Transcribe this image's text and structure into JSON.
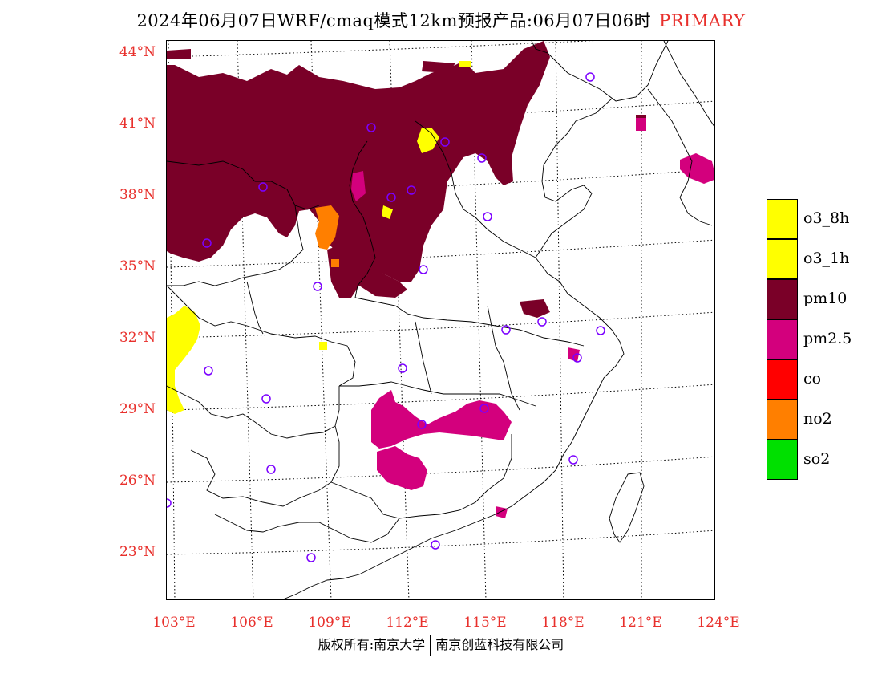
{
  "title": {
    "main": "2024年06月07日WRF/cmaq模式12km预报产品:06月07日06时",
    "tag": "PRIMARY"
  },
  "axes": {
    "lat_labels": [
      "44°N",
      "41°N",
      "38°N",
      "35°N",
      "32°N",
      "29°N",
      "26°N",
      "23°N"
    ],
    "lat_values": [
      44,
      41,
      38,
      35,
      32,
      29,
      26,
      23
    ],
    "lon_labels": [
      "103°E",
      "106°E",
      "109°E",
      "112°E",
      "115°E",
      "118°E",
      "121°E",
      "124°E"
    ],
    "lon_values": [
      103,
      106,
      109,
      112,
      115,
      118,
      121,
      124
    ]
  },
  "legend": {
    "items": [
      {
        "label": "o3_8h",
        "color": "#ffff00"
      },
      {
        "label": "o3_1h",
        "color": "#ffff00"
      },
      {
        "label": "pm10",
        "color": "#7a0028"
      },
      {
        "label": "pm2.5",
        "color": "#d3007d"
      },
      {
        "label": "co",
        "color": "#ff0000"
      },
      {
        "label": "no2",
        "color": "#ff7f00"
      },
      {
        "label": "so2",
        "color": "#00e000"
      }
    ]
  },
  "footer": {
    "left": "版权所有:南京大学",
    "right": "南京创蓝科技有限公司"
  },
  "colors": {
    "pm10": "#7a0028",
    "pm25": "#d3007d",
    "o3": "#ffff00",
    "no2": "#ff7f00",
    "station": "#7b00ff",
    "axis_label": "#e8302c"
  }
}
